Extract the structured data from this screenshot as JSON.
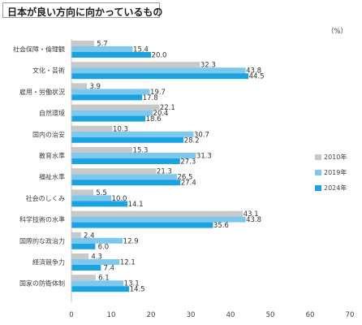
{
  "chart_data": {
    "type": "bar",
    "orientation": "horizontal",
    "title": "日本が良い方向に向かっているもの",
    "unit": "（%）",
    "categories": [
      "社会保障・倫理観",
      "文化・芸術",
      "雇用・労働状況",
      "自然環境",
      "国内の治安",
      "教育水準",
      "福祉水準",
      "社会のしくみ",
      "科学技術の水準",
      "国際的な政治力",
      "経済競争力",
      "国家の防衛体制"
    ],
    "series": [
      {
        "name": "2010年",
        "color": "#c8c8c8",
        "values": [
          5.7,
          32.3,
          3.9,
          22.1,
          10.3,
          15.3,
          21.3,
          5.5,
          43.1,
          2.4,
          4.3,
          6.1
        ]
      },
      {
        "name": "2019年",
        "color": "#7ec8ee",
        "values": [
          15.4,
          43.8,
          19.7,
          20.4,
          30.7,
          31.3,
          26.5,
          10.0,
          43.8,
          12.9,
          12.1,
          13.1
        ]
      },
      {
        "name": "2024年",
        "color": "#1aa3e0",
        "values": [
          20.0,
          44.5,
          17.8,
          18.6,
          28.2,
          27.3,
          27.4,
          14.1,
          35.6,
          6.0,
          7.4,
          14.5
        ]
      }
    ],
    "xlim": [
      0,
      70
    ],
    "xticks": [
      0,
      10,
      20,
      30,
      40,
      50,
      60,
      70
    ],
    "legend_position": "right",
    "grid": false
  }
}
